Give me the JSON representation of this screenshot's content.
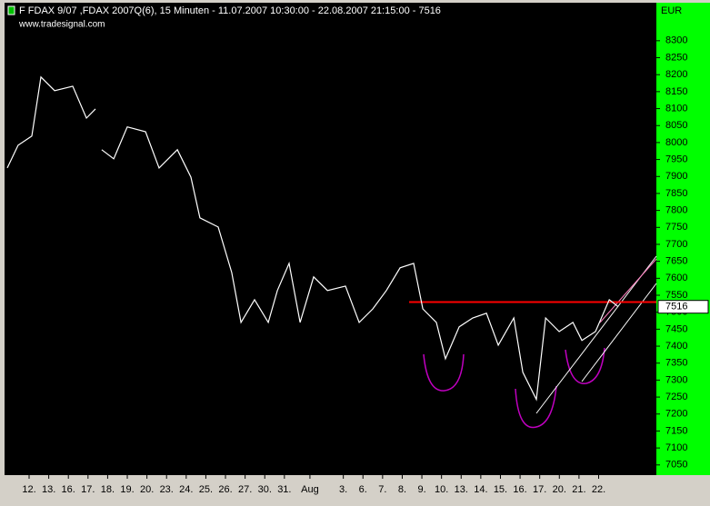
{
  "chart_data": {
    "type": "line",
    "title": "F FDAX 9/07 ,FDAX 2007Q(6), 15 Minuten - 11.07.2007 10:30:00 - 22.08.2007 21:15:00 - 7516",
    "subtitle": "www.tradesignal.com",
    "y_axis_label": "EUR",
    "last_value": 7516,
    "reference_line": {
      "value": 7530,
      "color": "#ff0000"
    },
    "color": "#ffffff",
    "x": [
      -1.11,
      -0.56,
      0.14,
      0.6,
      1.3,
      2.22,
      2.92,
      3.38,
      3.5,
      3.7,
      4.31,
      5.0,
      5.93,
      6.62,
      7.55,
      8.24,
      8.7,
      9.63,
      10.32,
      10.79,
      11.48,
      12.18,
      12.64,
      13.24,
      13.8,
      14.49,
      15.19,
      16.11,
      16.81,
      17.5,
      18.19,
      18.89,
      19.58,
      20.05,
      20.74,
      21.2,
      21.9,
      22.59,
      23.29,
      23.89,
      24.68,
      25.14,
      25.83,
      26.3,
      26.99,
      27.69,
      28.15,
      28.84,
      29.54,
      30.0
    ],
    "values": [
      7925,
      7992,
      8019,
      8193,
      8153,
      8166,
      8072,
      8099,
      null,
      7979,
      7952,
      8046,
      8032,
      7925,
      7979,
      7898,
      7778,
      7751,
      7617,
      7470,
      7537,
      7470,
      7564,
      7644,
      7470,
      7604,
      7564,
      7577,
      7470,
      7510,
      7564,
      7631,
      7644,
      7510,
      7470,
      7363,
      7457,
      7483,
      7497,
      7403,
      7483,
      7323,
      7243,
      7483,
      7443,
      7470,
      7417,
      7443,
      7537,
      7516
    ],
    "xlim": [
      -1.25,
      31.94
    ],
    "xticks": [
      {
        "value": 0,
        "label": "12."
      },
      {
        "value": 1,
        "label": "13."
      },
      {
        "value": 2,
        "label": "16."
      },
      {
        "value": 3,
        "label": "17."
      },
      {
        "value": 4,
        "label": "18."
      },
      {
        "value": 5,
        "label": "19."
      },
      {
        "value": 6,
        "label": "20."
      },
      {
        "value": 7,
        "label": "23."
      },
      {
        "value": 8,
        "label": "24."
      },
      {
        "value": 9,
        "label": "25."
      },
      {
        "value": 10,
        "label": "26."
      },
      {
        "value": 11,
        "label": "27."
      },
      {
        "value": 12,
        "label": "30."
      },
      {
        "value": 13,
        "label": "31."
      },
      {
        "value": 14.3,
        "label": "Aug"
      },
      {
        "value": 16,
        "label": "3."
      },
      {
        "value": 17,
        "label": "6."
      },
      {
        "value": 18,
        "label": "7."
      },
      {
        "value": 19,
        "label": "8."
      },
      {
        "value": 20,
        "label": "9."
      },
      {
        "value": 21,
        "label": "10."
      },
      {
        "value": 22,
        "label": "13."
      },
      {
        "value": 23,
        "label": "14."
      },
      {
        "value": 24,
        "label": "15."
      },
      {
        "value": 25,
        "label": "16."
      },
      {
        "value": 26,
        "label": "17."
      },
      {
        "value": 27,
        "label": "20."
      },
      {
        "value": 28,
        "label": "21."
      },
      {
        "value": 29,
        "label": "22."
      }
    ],
    "ylim": [
      7020,
      8412
    ],
    "yticks": [
      7050,
      7100,
      7150,
      7200,
      7250,
      7300,
      7350,
      7400,
      7450,
      7500,
      7550,
      7600,
      7650,
      7700,
      7750,
      7800,
      7850,
      7900,
      7950,
      8000,
      8050,
      8100,
      8150,
      8200,
      8250,
      8300
    ]
  }
}
